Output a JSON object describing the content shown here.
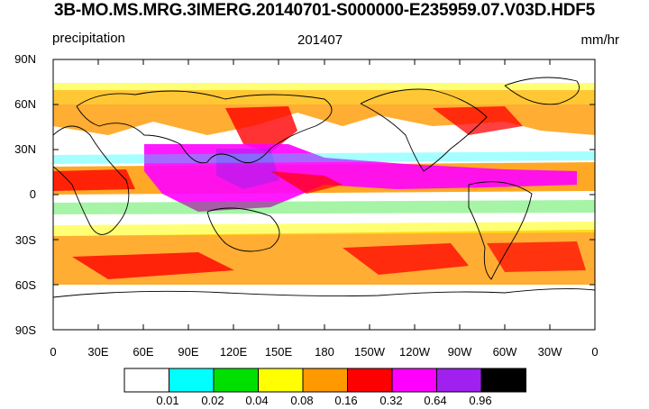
{
  "header": {
    "title": "3B-MO.MS.MRG.3IMERG.20140701-S000000-E235959.07.V03D.HDF5",
    "variable_label": "precipitation",
    "date_label": "201407",
    "units_label": "mm/hr"
  },
  "axes": {
    "y_ticks": [
      "90N",
      "60N",
      "30N",
      "0",
      "30S",
      "60S",
      "90S"
    ],
    "x_ticks": [
      "0",
      "30E",
      "60E",
      "90E",
      "120E",
      "150E",
      "180",
      "150W",
      "120W",
      "90W",
      "60W",
      "30W",
      "0"
    ]
  },
  "legend": {
    "labels": [
      "0.01",
      "0.02",
      "0.04",
      "0.08",
      "0.16",
      "0.32",
      "0.64",
      "0.96"
    ],
    "colors": [
      "#ffffff",
      "#00ffff",
      "#00e000",
      "#ffff00",
      "#ff9900",
      "#ff0000",
      "#ff00ff",
      "#a020f0",
      "#000000"
    ]
  }
}
